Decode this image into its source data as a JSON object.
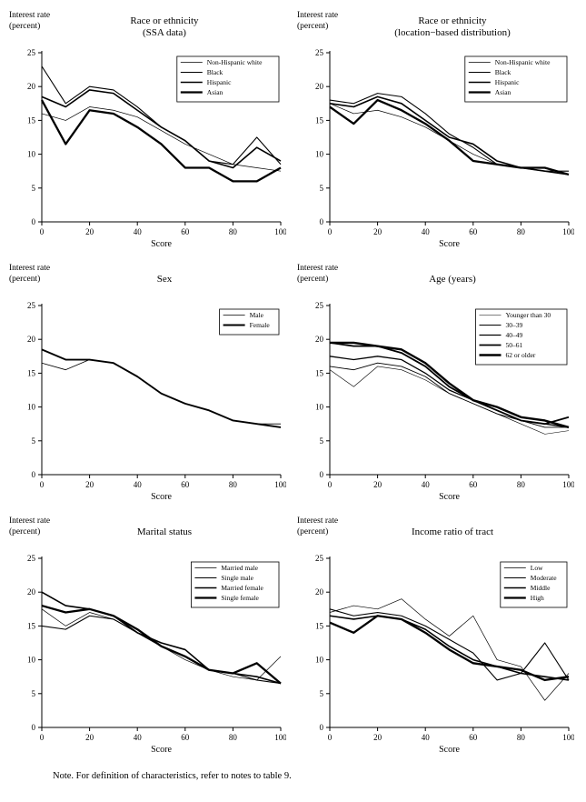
{
  "page": {
    "note": "Note. For definition of characteristics, refer to notes to table 9."
  },
  "axis": {
    "ylabel_line1": "Interest rate",
    "ylabel_line2": "(percent)",
    "xlabel": "Score",
    "ylim": [
      0,
      25
    ],
    "xlim": [
      0,
      100
    ],
    "yticks": [
      0,
      5,
      10,
      15,
      20,
      25
    ],
    "xticks": [
      0,
      20,
      40,
      60,
      80,
      100
    ],
    "grid": "off",
    "legend_position": "top-right"
  },
  "chart_data": [
    {
      "type": "line",
      "title_line1": "Race or ethnicity",
      "title_line2": "(SSA data)",
      "x": [
        0,
        10,
        20,
        30,
        40,
        50,
        60,
        70,
        80,
        90,
        100
      ],
      "series": [
        {
          "name": "Non-Hispanic white",
          "line_width": 0.7,
          "values": [
            16,
            15,
            17,
            16.5,
            15.5,
            13.5,
            11.5,
            10,
            8.5,
            8,
            7.5
          ]
        },
        {
          "name": "Black",
          "line_width": 1.1,
          "values": [
            23,
            17.5,
            20,
            19.5,
            17,
            14,
            12,
            9,
            8.5,
            12.5,
            8.5
          ]
        },
        {
          "name": "Hispanic",
          "line_width": 1.6,
          "values": [
            18.5,
            17,
            19.5,
            19,
            16.5,
            14,
            12,
            9,
            8,
            11,
            9
          ]
        },
        {
          "name": "Asian",
          "line_width": 2.3,
          "values": [
            18,
            11.5,
            16.5,
            16,
            14,
            11.5,
            8,
            8,
            6,
            6,
            8
          ]
        }
      ]
    },
    {
      "type": "line",
      "title_line1": "Race or ethnicity",
      "title_line2": "(location−based distribution)",
      "x": [
        0,
        10,
        20,
        30,
        40,
        50,
        60,
        70,
        80,
        90,
        100
      ],
      "series": [
        {
          "name": "Non-Hispanic white",
          "line_width": 0.7,
          "values": [
            17.5,
            16,
            16.5,
            15.5,
            14,
            12,
            10,
            8.5,
            8,
            7.5,
            7
          ]
        },
        {
          "name": "Black",
          "line_width": 1.1,
          "values": [
            18,
            17.5,
            19,
            18.5,
            16,
            13,
            11,
            8.5,
            8,
            7.5,
            7.5
          ]
        },
        {
          "name": "Hispanic",
          "line_width": 1.6,
          "values": [
            17.5,
            17,
            18.5,
            17.5,
            15,
            12.5,
            11.5,
            9,
            8,
            7.5,
            7
          ]
        },
        {
          "name": "Asian",
          "line_width": 2.3,
          "values": [
            17,
            14.5,
            18,
            16.5,
            14.5,
            12,
            9,
            8.5,
            8,
            8,
            7
          ]
        }
      ]
    },
    {
      "type": "line",
      "title_line1": "Sex",
      "x": [
        0,
        10,
        20,
        30,
        40,
        50,
        60,
        70,
        80,
        90,
        100
      ],
      "series": [
        {
          "name": "Male",
          "line_width": 0.8,
          "values": [
            16.5,
            15.5,
            17,
            16.5,
            14.5,
            12,
            10.5,
            9.5,
            8,
            7.5,
            7.5
          ]
        },
        {
          "name": "Female",
          "line_width": 1.9,
          "values": [
            18.5,
            17,
            17,
            16.5,
            14.5,
            12,
            10.5,
            9.5,
            8,
            7.5,
            7
          ]
        }
      ]
    },
    {
      "type": "line",
      "title_line1": "Age (years)",
      "x": [
        0,
        10,
        20,
        30,
        40,
        50,
        60,
        70,
        80,
        90,
        100
      ],
      "series": [
        {
          "name": "Younger than 30",
          "line_width": 0.6,
          "values": [
            15.5,
            13,
            16,
            15.5,
            14,
            12,
            10.5,
            9,
            7.5,
            6,
            6.5
          ]
        },
        {
          "name": "30–39",
          "line_width": 0.9,
          "values": [
            16,
            15.5,
            16.5,
            16,
            14.5,
            12,
            10.5,
            9,
            8,
            7,
            7
          ]
        },
        {
          "name": "40–49",
          "line_width": 1.3,
          "values": [
            17.5,
            17,
            17.5,
            17,
            15,
            12.5,
            11,
            9.5,
            8,
            7.5,
            7
          ]
        },
        {
          "name": "50–61",
          "line_width": 1.8,
          "values": [
            19.5,
            19,
            19,
            18,
            16,
            13,
            11,
            9.5,
            8,
            7.5,
            8.5
          ]
        },
        {
          "name": "62 or older",
          "line_width": 2.4,
          "values": [
            19.5,
            19.5,
            19,
            18.5,
            16.5,
            13.5,
            11,
            10,
            8.5,
            8,
            7
          ]
        }
      ]
    },
    {
      "type": "line",
      "title_line1": "Marital status",
      "x": [
        0,
        10,
        20,
        30,
        40,
        50,
        60,
        70,
        80,
        90,
        100
      ],
      "series": [
        {
          "name": "Married male",
          "line_width": 0.7,
          "values": [
            17.5,
            15,
            17,
            16,
            14,
            12,
            10,
            8.5,
            7.5,
            7,
            10.5
          ]
        },
        {
          "name": "Single male",
          "line_width": 1.1,
          "values": [
            15,
            14.5,
            16.5,
            16,
            14,
            12,
            10.5,
            8.5,
            8,
            7,
            6.5
          ]
        },
        {
          "name": "Married female",
          "line_width": 1.6,
          "values": [
            20,
            18,
            17.5,
            16.5,
            14,
            12.5,
            11.5,
            8.5,
            8,
            7.5,
            6.5
          ]
        },
        {
          "name": "Single female",
          "line_width": 2.3,
          "values": [
            18,
            17,
            17.5,
            16.5,
            14.5,
            12,
            10.5,
            8.5,
            8,
            9.5,
            6.5
          ]
        }
      ]
    },
    {
      "type": "line",
      "title_line1": "Income ratio of tract",
      "x": [
        0,
        10,
        20,
        30,
        40,
        50,
        60,
        70,
        80,
        90,
        100
      ],
      "series": [
        {
          "name": "Low",
          "line_width": 0.7,
          "values": [
            17,
            18,
            17.5,
            19,
            16,
            13.5,
            16.5,
            10,
            9,
            4,
            8
          ]
        },
        {
          "name": "Moderate",
          "line_width": 1.1,
          "values": [
            17.5,
            16.5,
            17,
            16.5,
            15,
            13,
            11,
            7,
            8,
            12.5,
            7
          ]
        },
        {
          "name": "Middle",
          "line_width": 1.6,
          "values": [
            16.5,
            16,
            16.5,
            16,
            14.5,
            12,
            10,
            9,
            8,
            7.5,
            7
          ]
        },
        {
          "name": "High",
          "line_width": 2.3,
          "values": [
            15.5,
            14,
            16.5,
            16,
            14,
            11.5,
            9.5,
            9,
            8.5,
            7,
            7.5
          ]
        }
      ]
    }
  ]
}
